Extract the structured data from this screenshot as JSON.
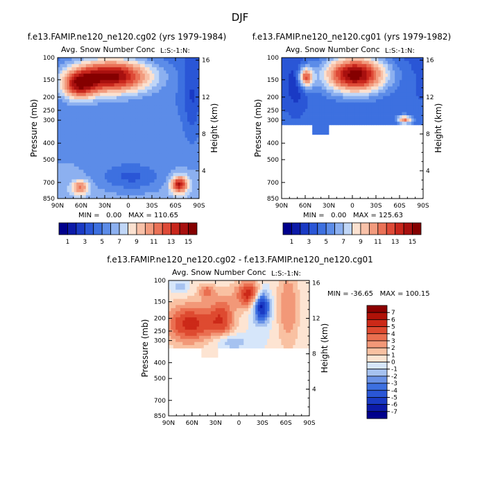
{
  "figure": {
    "title": "DJF"
  },
  "colors": {
    "seq": [
      "#00008c",
      "#0c1aa8",
      "#1a3ac4",
      "#2a56d6",
      "#3d70e0",
      "#5c8ce8",
      "#8cb0f0",
      "#c0d6f7",
      "#fbe1d0",
      "#f8c1a8",
      "#f29b7e",
      "#ea7257",
      "#de4a37",
      "#c8261c",
      "#a8100f",
      "#850000"
    ],
    "div": [
      "#00008c",
      "#0c1aa8",
      "#1a3ac4",
      "#2a56d6",
      "#3d70e0",
      "#6a92e6",
      "#a6c2f0",
      "#d6e6fa",
      "#fde4d2",
      "#f9c1a2",
      "#f29878",
      "#ea6f50",
      "#de4a30",
      "#cc2918",
      "#b01208",
      "#8c0000"
    ]
  },
  "panels": {
    "p1": {
      "title": "f.e13.FAMIP.ne120_ne120.cg02 (yrs 1979-1984)",
      "subtitle_left": "Avg. Snow Number Conc",
      "subtitle_right": "L:S:-1:N:",
      "minmax": "MIN =   0.00   MAX = 110.65"
    },
    "p2": {
      "title": "f.e13.FAMIP.ne120_ne120.cg01 (yrs 1979-1982)",
      "subtitle_left": "Avg. Snow Number Conc",
      "subtitle_right": "L:S:-1:N:",
      "minmax": "MIN =   0.00   MAX = 125.63"
    },
    "p3": {
      "title": "f.e13.FAMIP.ne120_ne120.cg02 - f.e13.FAMIP.ne120_ne120.cg01",
      "subtitle_left": "Avg. Snow Number Conc",
      "subtitle_right": "L:S:-1:N:",
      "minmax": "MIN = -36.65   MAX = 100.15"
    }
  },
  "chart_data": [
    {
      "type": "heatmap",
      "panel": "p1",
      "title": "f.e13.FAMIP.ne120_ne120.cg02 (yrs 1979-1984)",
      "subtitle": "Avg. Snow Number Conc  L:S:-1:N:",
      "xlabel": "",
      "ylabel": "Pressure (mb)",
      "y2label": "Height (km)",
      "xticks": [
        "90N",
        "60N",
        "30N",
        "0",
        "30S",
        "60S",
        "90S"
      ],
      "yticks": [
        100,
        150,
        200,
        250,
        300,
        400,
        500,
        700,
        850
      ],
      "y2ticks": [
        16,
        12,
        8,
        4
      ],
      "min": 0.0,
      "max": 110.65,
      "levels": [
        1,
        3,
        5,
        7,
        9,
        11,
        13,
        15
      ]
    },
    {
      "type": "heatmap",
      "panel": "p2",
      "title": "f.e13.FAMIP.ne120_ne120.cg01 (yrs 1979-1982)",
      "subtitle": "Avg. Snow Number Conc  L:S:-1:N:",
      "xlabel": "",
      "ylabel": "Pressure (mb)",
      "y2label": "Height (km)",
      "xticks": [
        "90N",
        "60N",
        "30N",
        "0",
        "30S",
        "60S",
        "90S"
      ],
      "yticks": [
        100,
        150,
        200,
        250,
        300,
        400,
        500,
        700,
        850
      ],
      "y2ticks": [
        16,
        12,
        8,
        4
      ],
      "min": 0.0,
      "max": 125.63,
      "levels": [
        1,
        3,
        5,
        7,
        9,
        11,
        13,
        15
      ]
    },
    {
      "type": "heatmap",
      "panel": "p3",
      "title": "f.e13.FAMIP.ne120_ne120.cg02 - f.e13.FAMIP.ne120_ne120.cg01",
      "subtitle": "Avg. Snow Number Conc  L:S:-1:N:",
      "xlabel": "",
      "ylabel": "Pressure (mb)",
      "y2label": "Height (km)",
      "xticks": [
        "90N",
        "60N",
        "30N",
        "0",
        "30S",
        "60S",
        "90S"
      ],
      "yticks": [
        100,
        150,
        200,
        250,
        300,
        400,
        500,
        700,
        850
      ],
      "y2ticks": [
        16,
        12,
        8,
        4
      ],
      "min": -36.65,
      "max": 100.15,
      "levels": [
        7,
        6,
        5,
        4,
        3,
        2,
        1,
        0,
        -1,
        -2,
        -3,
        -4,
        -5,
        -6,
        -7
      ]
    }
  ],
  "colorbars": {
    "cb1": {
      "labels": [
        "1",
        "3",
        "5",
        "7",
        "9",
        "11",
        "13",
        "15"
      ]
    },
    "cb2": {
      "labels": [
        "1",
        "3",
        "5",
        "7",
        "9",
        "11",
        "13",
        "15"
      ]
    },
    "cb3": {
      "labels": [
        "7",
        "6",
        "5",
        "4",
        "3",
        "2",
        "1",
        "0",
        "-1",
        "-2",
        "-3",
        "-4",
        "-5",
        "-6",
        "-7"
      ]
    }
  }
}
